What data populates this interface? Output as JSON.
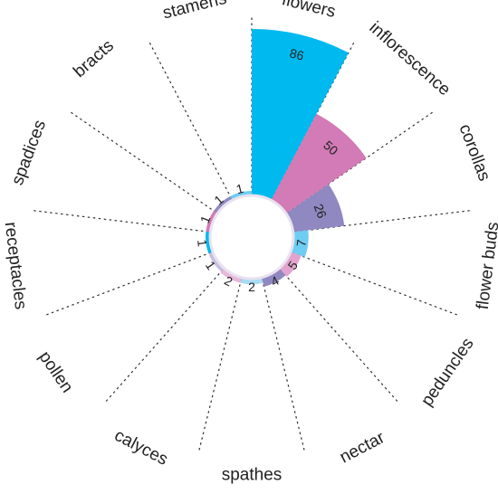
{
  "chart_data": {
    "type": "radial-bar",
    "categories": [
      "flowers",
      "inflorescence",
      "corollas",
      "flower buds",
      "peduncles",
      "nectar",
      "spathes",
      "calyces",
      "pollen",
      "receptacles",
      "spadices",
      "bracts",
      "stamens"
    ],
    "values": [
      86,
      50,
      26,
      7,
      5,
      4,
      2,
      2,
      1,
      1,
      1,
      1,
      1
    ],
    "colors": [
      "#00b9ef",
      "#d27bb6",
      "#9088c1",
      "#6ecdf2",
      "#e2a4cf",
      "#9088c1",
      "#a9dcf3",
      "#e6b8d8",
      "#c5bfe0",
      "#00b9ef",
      "#d27bb6",
      "#9088c1",
      "#6ecdf2"
    ],
    "grid": true,
    "legend": "none"
  }
}
